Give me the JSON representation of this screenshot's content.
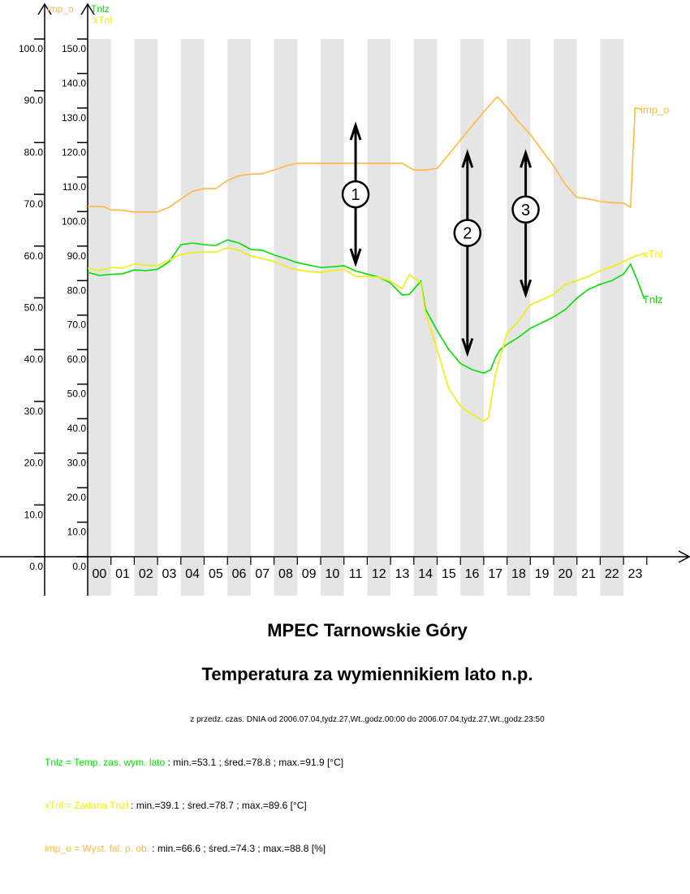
{
  "chart_data": {
    "type": "line",
    "title": "MPEC Tarnowskie Góry",
    "subtitle": "Temperatura za wymiennikiem lato n.p.",
    "period": "z przedz. czas. DNIA od 2006.07.04,tydz.27,Wt.,godz.00:00 do 2006.07.04,tydz.27,Wt.,godz.23:50",
    "xlabel": "",
    "x_ticks": [
      "00",
      "01",
      "02",
      "03",
      "04",
      "05",
      "06",
      "07",
      "08",
      "09",
      "10",
      "11",
      "12",
      "13",
      "14",
      "15",
      "16",
      "17",
      "18",
      "19",
      "20",
      "21",
      "22",
      "23"
    ],
    "xlim": [
      0,
      24
    ],
    "grid": "alternating hour bands",
    "axes": [
      {
        "name": "imp_o",
        "ylim": [
          0,
          100
        ],
        "ticks": [
          "0.0",
          "10.0",
          "20.0",
          "30.0",
          "40.0",
          "50.0",
          "60.0",
          "70.0",
          "80.0",
          "90.0",
          "100.0"
        ],
        "color": "#ffb840"
      },
      {
        "name": "Tnlz",
        "name2": "xTnl",
        "ylim": [
          0,
          150
        ],
        "ticks": [
          "0.0",
          "10.0",
          "20.0",
          "30.0",
          "40.0",
          "50.0",
          "60.0",
          "70.0",
          "80.0",
          "90.0",
          "100.0",
          "110.0",
          "120.0",
          "130.0",
          "140.0",
          "150.0"
        ],
        "color": "#00e000",
        "color2": "#f0f000"
      }
    ],
    "series": [
      {
        "name": "Tnlz",
        "axis": 1,
        "color": "#00e000",
        "x": [
          0,
          0.5,
          1,
          1.5,
          2,
          2.5,
          3,
          3.5,
          4,
          4.5,
          5,
          5.5,
          6,
          6.5,
          7,
          7.5,
          8,
          8.5,
          9,
          9.5,
          10,
          10.5,
          11,
          11.5,
          12,
          12.5,
          13,
          13.5,
          13.8,
          14.3,
          14.5,
          15,
          15.5,
          16,
          16.5,
          17,
          17.3,
          17.5,
          17.7,
          18,
          18.5,
          19,
          19.5,
          20,
          20.5,
          21,
          21.5,
          22,
          22.5,
          23,
          23.3,
          23.6,
          23.9
        ],
        "values": [
          82.4,
          81.5,
          81.8,
          82,
          83.1,
          82.9,
          83.3,
          85.5,
          90.4,
          90.9,
          90.4,
          90.2,
          91.8,
          90.9,
          89,
          88.8,
          87.4,
          86.4,
          85.2,
          84.5,
          83.8,
          84,
          84.3,
          82.8,
          81.9,
          81,
          79.3,
          75.8,
          76,
          79.8,
          71.8,
          65.5,
          60,
          56,
          54.2,
          53.2,
          54.2,
          57.7,
          60,
          61.5,
          63.6,
          66.2,
          67.8,
          69.5,
          71.6,
          74.9,
          77.5,
          78.9,
          80,
          81.9,
          84.8,
          80,
          74.6
        ]
      },
      {
        "name": "xTnl",
        "axis": 1,
        "color": "#f0f000",
        "x": [
          0,
          0.5,
          1,
          1.5,
          2,
          2.5,
          3,
          3.5,
          4,
          4.5,
          5,
          5.5,
          6,
          6.5,
          7,
          7.5,
          8,
          8.5,
          9,
          9.5,
          10,
          11,
          11.5,
          12,
          12.5,
          13,
          13.5,
          13.8,
          14.3,
          14.5,
          15,
          15.5,
          16,
          16.5,
          17,
          17.2,
          17.5,
          18,
          18.5,
          19,
          19.5,
          20,
          20.5,
          21,
          21.5,
          22,
          22.5,
          23,
          23.5,
          23.9
        ],
        "values": [
          83.6,
          82.9,
          83.8,
          83.6,
          84.8,
          84.5,
          84.3,
          86,
          87.6,
          88.1,
          88.3,
          88.3,
          89.5,
          88.8,
          87.1,
          86.4,
          85.5,
          84.1,
          83.1,
          82.6,
          82.4,
          83.3,
          81.2,
          81.2,
          81,
          79.8,
          77.7,
          81.7,
          79.4,
          70.6,
          60,
          48.7,
          43.6,
          41.2,
          39.3,
          40.2,
          53,
          64.7,
          68.3,
          73,
          74.4,
          76,
          78.9,
          80,
          81.2,
          82.9,
          84,
          85.5,
          87.1,
          87.8
        ]
      },
      {
        "name": "imp_o",
        "axis": 0,
        "color": "#ffb840",
        "x": [
          0,
          0.7,
          1,
          1.5,
          2,
          2.5,
          3,
          3.5,
          4,
          4.5,
          5,
          5.5,
          6,
          6.5,
          7,
          7.5,
          8,
          8.5,
          9,
          10,
          11,
          12,
          13,
          13.5,
          14,
          14.5,
          15,
          15.5,
          16,
          16.5,
          17,
          17.5,
          17.6,
          18,
          18.5,
          19,
          19.5,
          20,
          20.5,
          21,
          21.5,
          22,
          22.5,
          23,
          23.3,
          23.5,
          23.8
        ],
        "values": [
          67.7,
          67.6,
          67,
          66.9,
          66.6,
          66.6,
          66.6,
          67.5,
          69.1,
          70.6,
          71.1,
          71.1,
          72.7,
          73.6,
          73.9,
          74,
          74.7,
          75.5,
          76,
          76,
          76,
          76,
          76,
          76,
          74.7,
          74.7,
          75,
          77.7,
          80.5,
          83.2,
          85.9,
          88.5,
          88.8,
          86.8,
          84,
          81.5,
          78.5,
          75.5,
          71.9,
          69.4,
          69.1,
          68.6,
          68.4,
          68.3,
          67.5,
          86.7,
          86.4
        ]
      }
    ],
    "annotations": [
      {
        "label": "1",
        "hour": 11.5,
        "from": 125,
        "to": 85
      },
      {
        "label": "2",
        "hour": 16.3,
        "from": 117,
        "to": 59
      },
      {
        "label": "3",
        "hour": 18.8,
        "from": 117,
        "to": 76
      }
    ],
    "legend": [
      {
        "key": "Tnlz = Temp. zas. wym. lato",
        "stats": " : min.=53.1 ; śred.=78.8 ; max.=91.9 [°C]",
        "color": "#00e000"
      },
      {
        "key": "xTnl = Zadana Tnzl",
        "stats": " : min.=39.1 ; śred.=78.7 ; max.=89.6 [°C]",
        "color": "#f0f000"
      },
      {
        "key": "imp_o = Wyst. fal. p. ob.",
        "stats": " : min.=66.6 ; śred.=74.3 ; max.=88.8 [%]",
        "color": "#ffb840"
      }
    ]
  }
}
